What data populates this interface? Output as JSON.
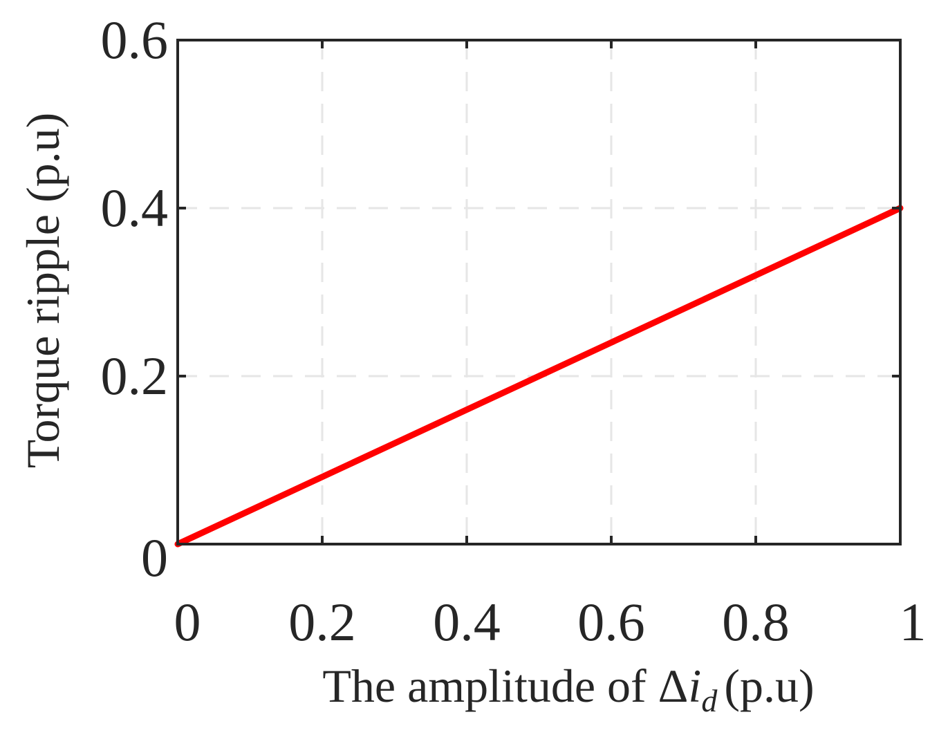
{
  "chart_data": {
    "type": "line",
    "xlabel": "The amplitude of Δi",
    "xlabel_parts": {
      "main": "The amplitude of Δ",
      "var": "i",
      "subscript": "d",
      "unit": "(p.u)"
    },
    "ylabel": "Torque ripple (p.u)",
    "xlim": [
      0,
      1
    ],
    "ylim": [
      0,
      0.6
    ],
    "xticks": [
      0,
      0.2,
      0.4,
      0.6,
      0.8,
      1
    ],
    "xtick_labels": [
      "0",
      "0.2",
      "0.4",
      "0.6",
      "0.8",
      "1"
    ],
    "yticks": [
      0,
      0.2,
      0.4,
      0.6
    ],
    "ytick_labels": [
      "0",
      "0.2",
      "0.4",
      "0.6"
    ],
    "grid": true,
    "grid_style": "dashed",
    "series": [
      {
        "x": [
          0,
          0.2,
          0.4,
          0.6,
          0.8,
          1
        ],
        "y": [
          0,
          0.08,
          0.16,
          0.24,
          0.32,
          0.4
        ],
        "color": "#ff0000"
      }
    ],
    "colors": {
      "line": "#ff0000",
      "axes": "#262626",
      "grid": "#e6e6e6"
    }
  }
}
